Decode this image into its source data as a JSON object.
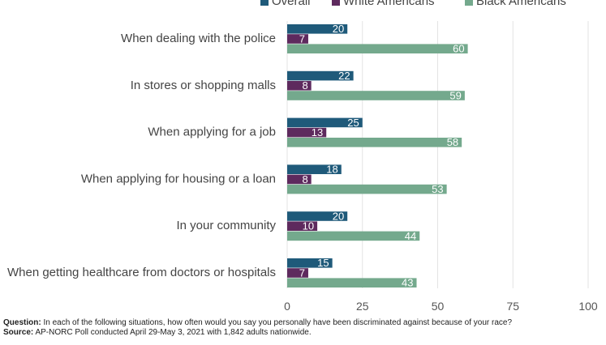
{
  "chart_data": {
    "type": "bar",
    "orientation": "horizontal",
    "categories": [
      "When dealing with the police",
      "In stores or shopping malls",
      "When applying for a job",
      "When applying for housing or a loan",
      "In your community",
      "When getting healthcare from doctors or hospitals"
    ],
    "series": [
      {
        "name": "Overall",
        "color": "#1f5a7a",
        "values": [
          20,
          22,
          25,
          18,
          20,
          15
        ]
      },
      {
        "name": "White Americans",
        "color": "#5e2a5e",
        "values": [
          7,
          8,
          13,
          8,
          10,
          7
        ]
      },
      {
        "name": "Black Americans",
        "color": "#74a98d",
        "values": [
          60,
          59,
          58,
          53,
          44,
          43
        ]
      }
    ],
    "x_ticks": [
      0,
      25,
      50,
      75,
      100
    ],
    "xlim": [
      0,
      100
    ],
    "grid": true,
    "legend_position": "top"
  },
  "footnote": {
    "question_label": "Question:",
    "question_text": " In each of the following situations, how often would you say you personally have been discriminated against because of your race?",
    "source_label": "Source:",
    "source_text": " AP-NORC Poll conducted April 29-May 3, 2021 with 1,842 adults nationwide."
  }
}
